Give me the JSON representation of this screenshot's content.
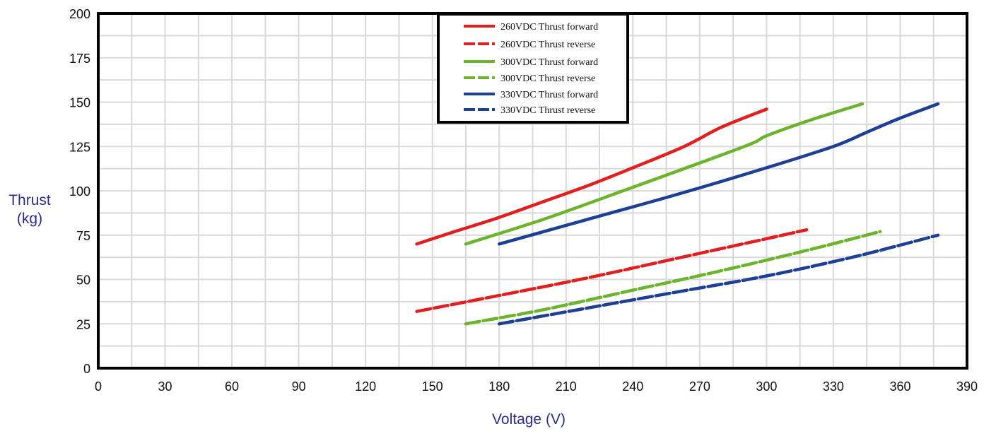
{
  "chart_data": {
    "type": "line",
    "title": "",
    "xlabel": "Voltage (V)",
    "ylabel_lines": [
      "Thrust",
      "(kg)"
    ],
    "xlim": [
      0,
      390
    ],
    "ylim": [
      0,
      200
    ],
    "x_ticks": [
      0,
      30,
      60,
      90,
      120,
      150,
      180,
      210,
      240,
      270,
      300,
      330,
      360,
      390
    ],
    "y_ticks": [
      0,
      25,
      50,
      75,
      100,
      125,
      150,
      175,
      200
    ],
    "x_tick_labels": [
      "0",
      "30",
      "60",
      "90",
      "120",
      "150",
      "180",
      "210",
      "240",
      "270",
      "300",
      "330",
      "360",
      "390"
    ],
    "y_tick_labels": [
      "0",
      "25",
      "50",
      "75",
      "100",
      "125",
      "150",
      "175",
      "200"
    ],
    "grid": true,
    "minor_x_step": 15,
    "minor_y_step": 12.5,
    "legend_position": "top-center",
    "series": [
      {
        "name": "260VDC Thrust forward",
        "color": "#e02020",
        "dash": false,
        "points": [
          [
            143,
            70
          ],
          [
            160,
            77
          ],
          [
            180,
            85
          ],
          [
            200,
            94
          ],
          [
            220,
            103
          ],
          [
            240,
            113
          ],
          [
            263,
            125
          ],
          [
            280,
            136
          ],
          [
            300,
            146
          ]
        ]
      },
      {
        "name": "260VDC Thrust reverse",
        "color": "#e02020",
        "dash": true,
        "points": [
          [
            143,
            32
          ],
          [
            180,
            41
          ],
          [
            220,
            51
          ],
          [
            260,
            62
          ],
          [
            300,
            73
          ],
          [
            318,
            78
          ]
        ]
      },
      {
        "name": "300VDC Thrust forward",
        "color": "#6cb32e",
        "dash": false,
        "points": [
          [
            165,
            70
          ],
          [
            200,
            84
          ],
          [
            240,
            102
          ],
          [
            290,
            125
          ],
          [
            300,
            131
          ],
          [
            320,
            140
          ],
          [
            343,
            149
          ]
        ]
      },
      {
        "name": "300VDC Thrust reverse",
        "color": "#6cb32e",
        "dash": true,
        "points": [
          [
            165,
            25
          ],
          [
            200,
            33
          ],
          [
            240,
            44
          ],
          [
            280,
            55
          ],
          [
            320,
            67
          ],
          [
            351,
            77
          ]
        ]
      },
      {
        "name": "330VDC Thrust forward",
        "color": "#1d3f94",
        "dash": false,
        "points": [
          [
            180,
            70
          ],
          [
            220,
            84
          ],
          [
            260,
            98
          ],
          [
            300,
            113
          ],
          [
            330,
            125
          ],
          [
            345,
            133
          ],
          [
            360,
            141
          ],
          [
            377,
            149
          ]
        ]
      },
      {
        "name": "330VDC Thrust reverse",
        "color": "#1d3f94",
        "dash": true,
        "points": [
          [
            180,
            25
          ],
          [
            220,
            34
          ],
          [
            260,
            43
          ],
          [
            300,
            52
          ],
          [
            340,
            63
          ],
          [
            377,
            75
          ]
        ]
      }
    ]
  }
}
